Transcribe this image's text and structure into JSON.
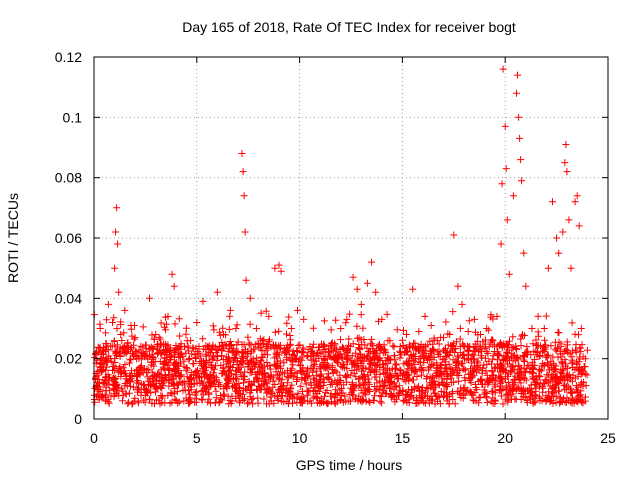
{
  "chart_data": {
    "type": "scatter",
    "title": "Day 165 of 2018, Rate Of TEC Index for receiver bogt",
    "xlabel": "GPS time / hours",
    "ylabel": "ROTI / TECUs",
    "xlim": [
      0,
      25
    ],
    "ylim": [
      0,
      0.12
    ],
    "xticks": [
      0,
      5,
      10,
      15,
      20,
      25
    ],
    "xtick_labels": [
      "0",
      "5",
      "10",
      "15",
      "20",
      "25"
    ],
    "yticks": [
      0,
      0.02,
      0.04,
      0.06,
      0.08,
      0.1,
      0.12
    ],
    "ytick_labels": [
      "0",
      "0.02",
      "0.04",
      "0.06",
      "0.08",
      "0.1",
      "0.12"
    ],
    "grid": true,
    "marker": "+",
    "marker_color": "#ff0000",
    "series": [
      {
        "name": "ROTI",
        "points": [
          [
            0.1,
            0.014
          ],
          [
            0.2,
            0.022
          ],
          [
            0.3,
            0.03
          ],
          [
            0.4,
            0.018
          ],
          [
            0.5,
            0.012
          ],
          [
            0.6,
            0.025
          ],
          [
            0.7,
            0.038
          ],
          [
            0.8,
            0.02
          ],
          [
            0.9,
            0.032
          ],
          [
            1.0,
            0.05
          ],
          [
            1.05,
            0.062
          ],
          [
            1.1,
            0.07
          ],
          [
            1.15,
            0.058
          ],
          [
            1.2,
            0.042
          ],
          [
            1.3,
            0.028
          ],
          [
            1.5,
            0.036
          ],
          [
            1.8,
            0.031
          ],
          [
            2.0,
            0.027
          ],
          [
            2.3,
            0.02
          ],
          [
            2.7,
            0.04
          ],
          [
            3.0,
            0.028
          ],
          [
            3.3,
            0.022
          ],
          [
            3.6,
            0.034
          ],
          [
            3.8,
            0.048
          ],
          [
            3.9,
            0.044
          ],
          [
            4.1,
            0.018
          ],
          [
            4.4,
            0.024
          ],
          [
            4.7,
            0.026
          ],
          [
            5.0,
            0.032
          ],
          [
            5.3,
            0.039
          ],
          [
            5.6,
            0.021
          ],
          [
            6.0,
            0.042
          ],
          [
            6.3,
            0.028
          ],
          [
            6.6,
            0.034
          ],
          [
            6.9,
            0.03
          ],
          [
            7.2,
            0.088
          ],
          [
            7.25,
            0.082
          ],
          [
            7.3,
            0.074
          ],
          [
            7.35,
            0.062
          ],
          [
            7.4,
            0.046
          ],
          [
            7.6,
            0.04
          ],
          [
            7.9,
            0.03
          ],
          [
            8.2,
            0.026
          ],
          [
            8.5,
            0.034
          ],
          [
            8.8,
            0.05
          ],
          [
            9.0,
            0.051
          ],
          [
            9.1,
            0.049
          ],
          [
            9.3,
            0.022
          ],
          [
            9.6,
            0.03
          ],
          [
            9.9,
            0.036
          ],
          [
            10.2,
            0.033
          ],
          [
            10.5,
            0.024
          ],
          [
            10.8,
            0.021
          ],
          [
            11.1,
            0.018
          ],
          [
            11.4,
            0.015
          ],
          [
            11.7,
            0.025
          ],
          [
            12.0,
            0.03
          ],
          [
            12.3,
            0.033
          ],
          [
            12.6,
            0.047
          ],
          [
            12.8,
            0.043
          ],
          [
            13.0,
            0.038
          ],
          [
            13.3,
            0.045
          ],
          [
            13.5,
            0.052
          ],
          [
            13.7,
            0.042
          ],
          [
            14.0,
            0.033
          ],
          [
            14.3,
            0.026
          ],
          [
            14.6,
            0.021
          ],
          [
            14.9,
            0.024
          ],
          [
            15.2,
            0.028
          ],
          [
            15.5,
            0.043
          ],
          [
            15.8,
            0.029
          ],
          [
            16.1,
            0.034
          ],
          [
            16.4,
            0.031
          ],
          [
            16.7,
            0.026
          ],
          [
            17.0,
            0.027
          ],
          [
            17.3,
            0.028
          ],
          [
            17.5,
            0.061
          ],
          [
            17.7,
            0.044
          ],
          [
            17.9,
            0.038
          ],
          [
            18.2,
            0.029
          ],
          [
            18.5,
            0.033
          ],
          [
            18.8,
            0.028
          ],
          [
            19.1,
            0.03
          ],
          [
            19.4,
            0.026
          ],
          [
            19.6,
            0.034
          ],
          [
            19.8,
            0.058
          ],
          [
            19.85,
            0.078
          ],
          [
            19.9,
            0.116
          ],
          [
            20.0,
            0.097
          ],
          [
            20.05,
            0.083
          ],
          [
            20.1,
            0.066
          ],
          [
            20.2,
            0.048
          ],
          [
            20.4,
            0.074
          ],
          [
            20.55,
            0.108
          ],
          [
            20.6,
            0.114
          ],
          [
            20.65,
            0.1
          ],
          [
            20.7,
            0.093
          ],
          [
            20.75,
            0.086
          ],
          [
            20.8,
            0.079
          ],
          [
            20.9,
            0.055
          ],
          [
            21.0,
            0.044
          ],
          [
            21.3,
            0.03
          ],
          [
            21.6,
            0.034
          ],
          [
            21.9,
            0.03
          ],
          [
            22.1,
            0.05
          ],
          [
            22.3,
            0.072
          ],
          [
            22.5,
            0.06
          ],
          [
            22.6,
            0.055
          ],
          [
            22.8,
            0.062
          ],
          [
            22.9,
            0.085
          ],
          [
            22.95,
            0.091
          ],
          [
            23.0,
            0.082
          ],
          [
            23.1,
            0.066
          ],
          [
            23.2,
            0.05
          ],
          [
            23.4,
            0.072
          ],
          [
            23.5,
            0.074
          ],
          [
            23.6,
            0.064
          ],
          [
            23.7,
            0.03
          ],
          [
            23.9,
            0.02
          ]
        ]
      }
    ]
  }
}
